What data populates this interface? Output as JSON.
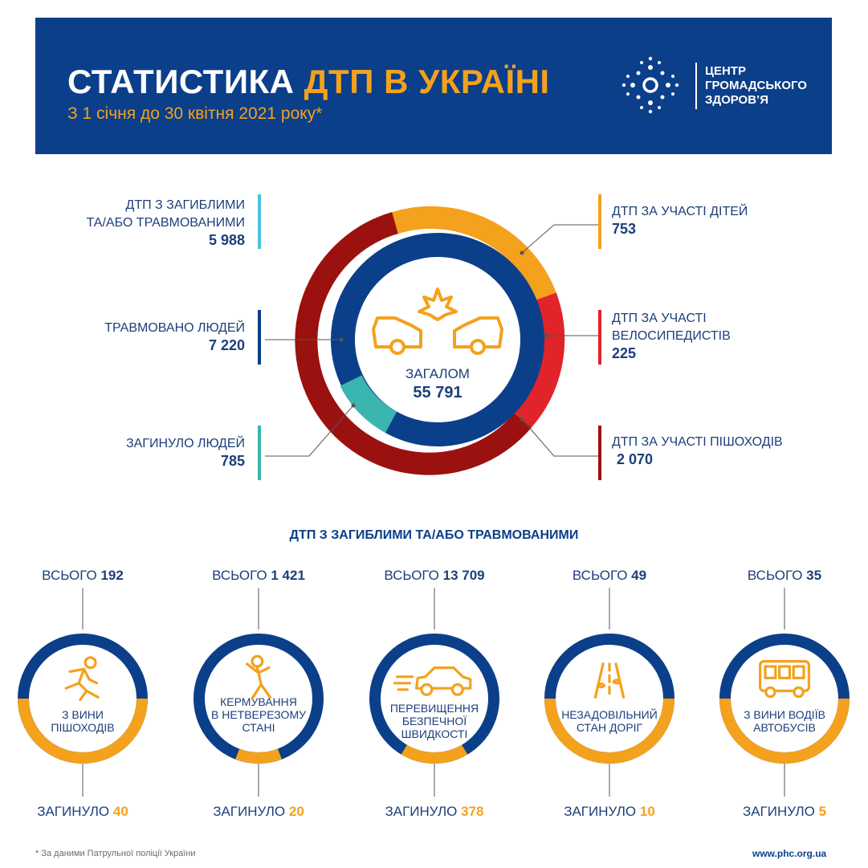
{
  "header": {
    "title_main": "СТАТИСТИКА ",
    "title_highlight": "ДТП В УКРАЇНІ",
    "subtitle": "З 1 січня до 30 квітня 2021 року*",
    "logo_text": "ЦЕНТР\nГРОМАДСЬКОГО\nЗДОРОВ’Я"
  },
  "colors": {
    "navy": "#0b3f8a",
    "orange": "#f4a11d",
    "dark_red": "#9b1110",
    "red": "#e1232a",
    "teal": "#3ab5b0",
    "light_blue": "#4ec2dd"
  },
  "donut": {
    "center_label": "ЗАГАЛОМ",
    "center_value": "55 791",
    "left": [
      {
        "label": "ДТП З ЗАГИБЛИМИ\nТА/АБО ТРАВМОВАНИМИ",
        "value": "5 988"
      },
      {
        "label": "ТРАВМОВАНО ЛЮДЕЙ",
        "value": "7 220"
      },
      {
        "label": "ЗАГИНУЛО ЛЮДЕЙ",
        "value": "785"
      }
    ],
    "right": [
      {
        "label": "ДТП ЗА УЧАСТІ ДІТЕЙ",
        "value": "753"
      },
      {
        "label": "ДТП ЗА УЧАСТІ\nВЕЛОСИПЕДИСТІВ",
        "value": "225"
      },
      {
        "label": "ДТП ЗА УЧАСТІ ПІШОХОДІВ",
        "value": "2 070"
      }
    ]
  },
  "causes": {
    "title": "ДТП З ЗАГИБЛИМИ ТА/АБО ТРАВМОВАНИМИ",
    "total_prefix": "ВСЬОГО ",
    "dead_prefix": "ЗАГИНУЛО ",
    "items": [
      {
        "total": "192",
        "caption": "З ВИНИ\nПІШОХОДІВ",
        "dead": "40",
        "icon": "running-person-icon"
      },
      {
        "total": "1 421",
        "caption": "КЕРМУВАННЯ\nВ НЕТВЕРЕЗОМУ\nСТАНІ",
        "dead": "20",
        "icon": "drunk-person-icon"
      },
      {
        "total": "13 709",
        "caption": "ПЕРЕВИЩЕННЯ\nБЕЗПЕЧНОЇ\nШВИДКОСТІ",
        "dead": "378",
        "icon": "speeding-car-icon"
      },
      {
        "total": "49",
        "caption": "НЕЗАДОВІЛЬНИЙ\nСТАН ДОРІГ",
        "dead": "10",
        "icon": "road-icon"
      },
      {
        "total": "35",
        "caption": "З ВИНИ ВОДІЇВ\nАВТОБУСІВ",
        "dead": "5",
        "icon": "bus-icon"
      }
    ]
  },
  "footer": {
    "note": "* За даними Патрульної поліції України",
    "site": "www.phc.org.ua"
  }
}
